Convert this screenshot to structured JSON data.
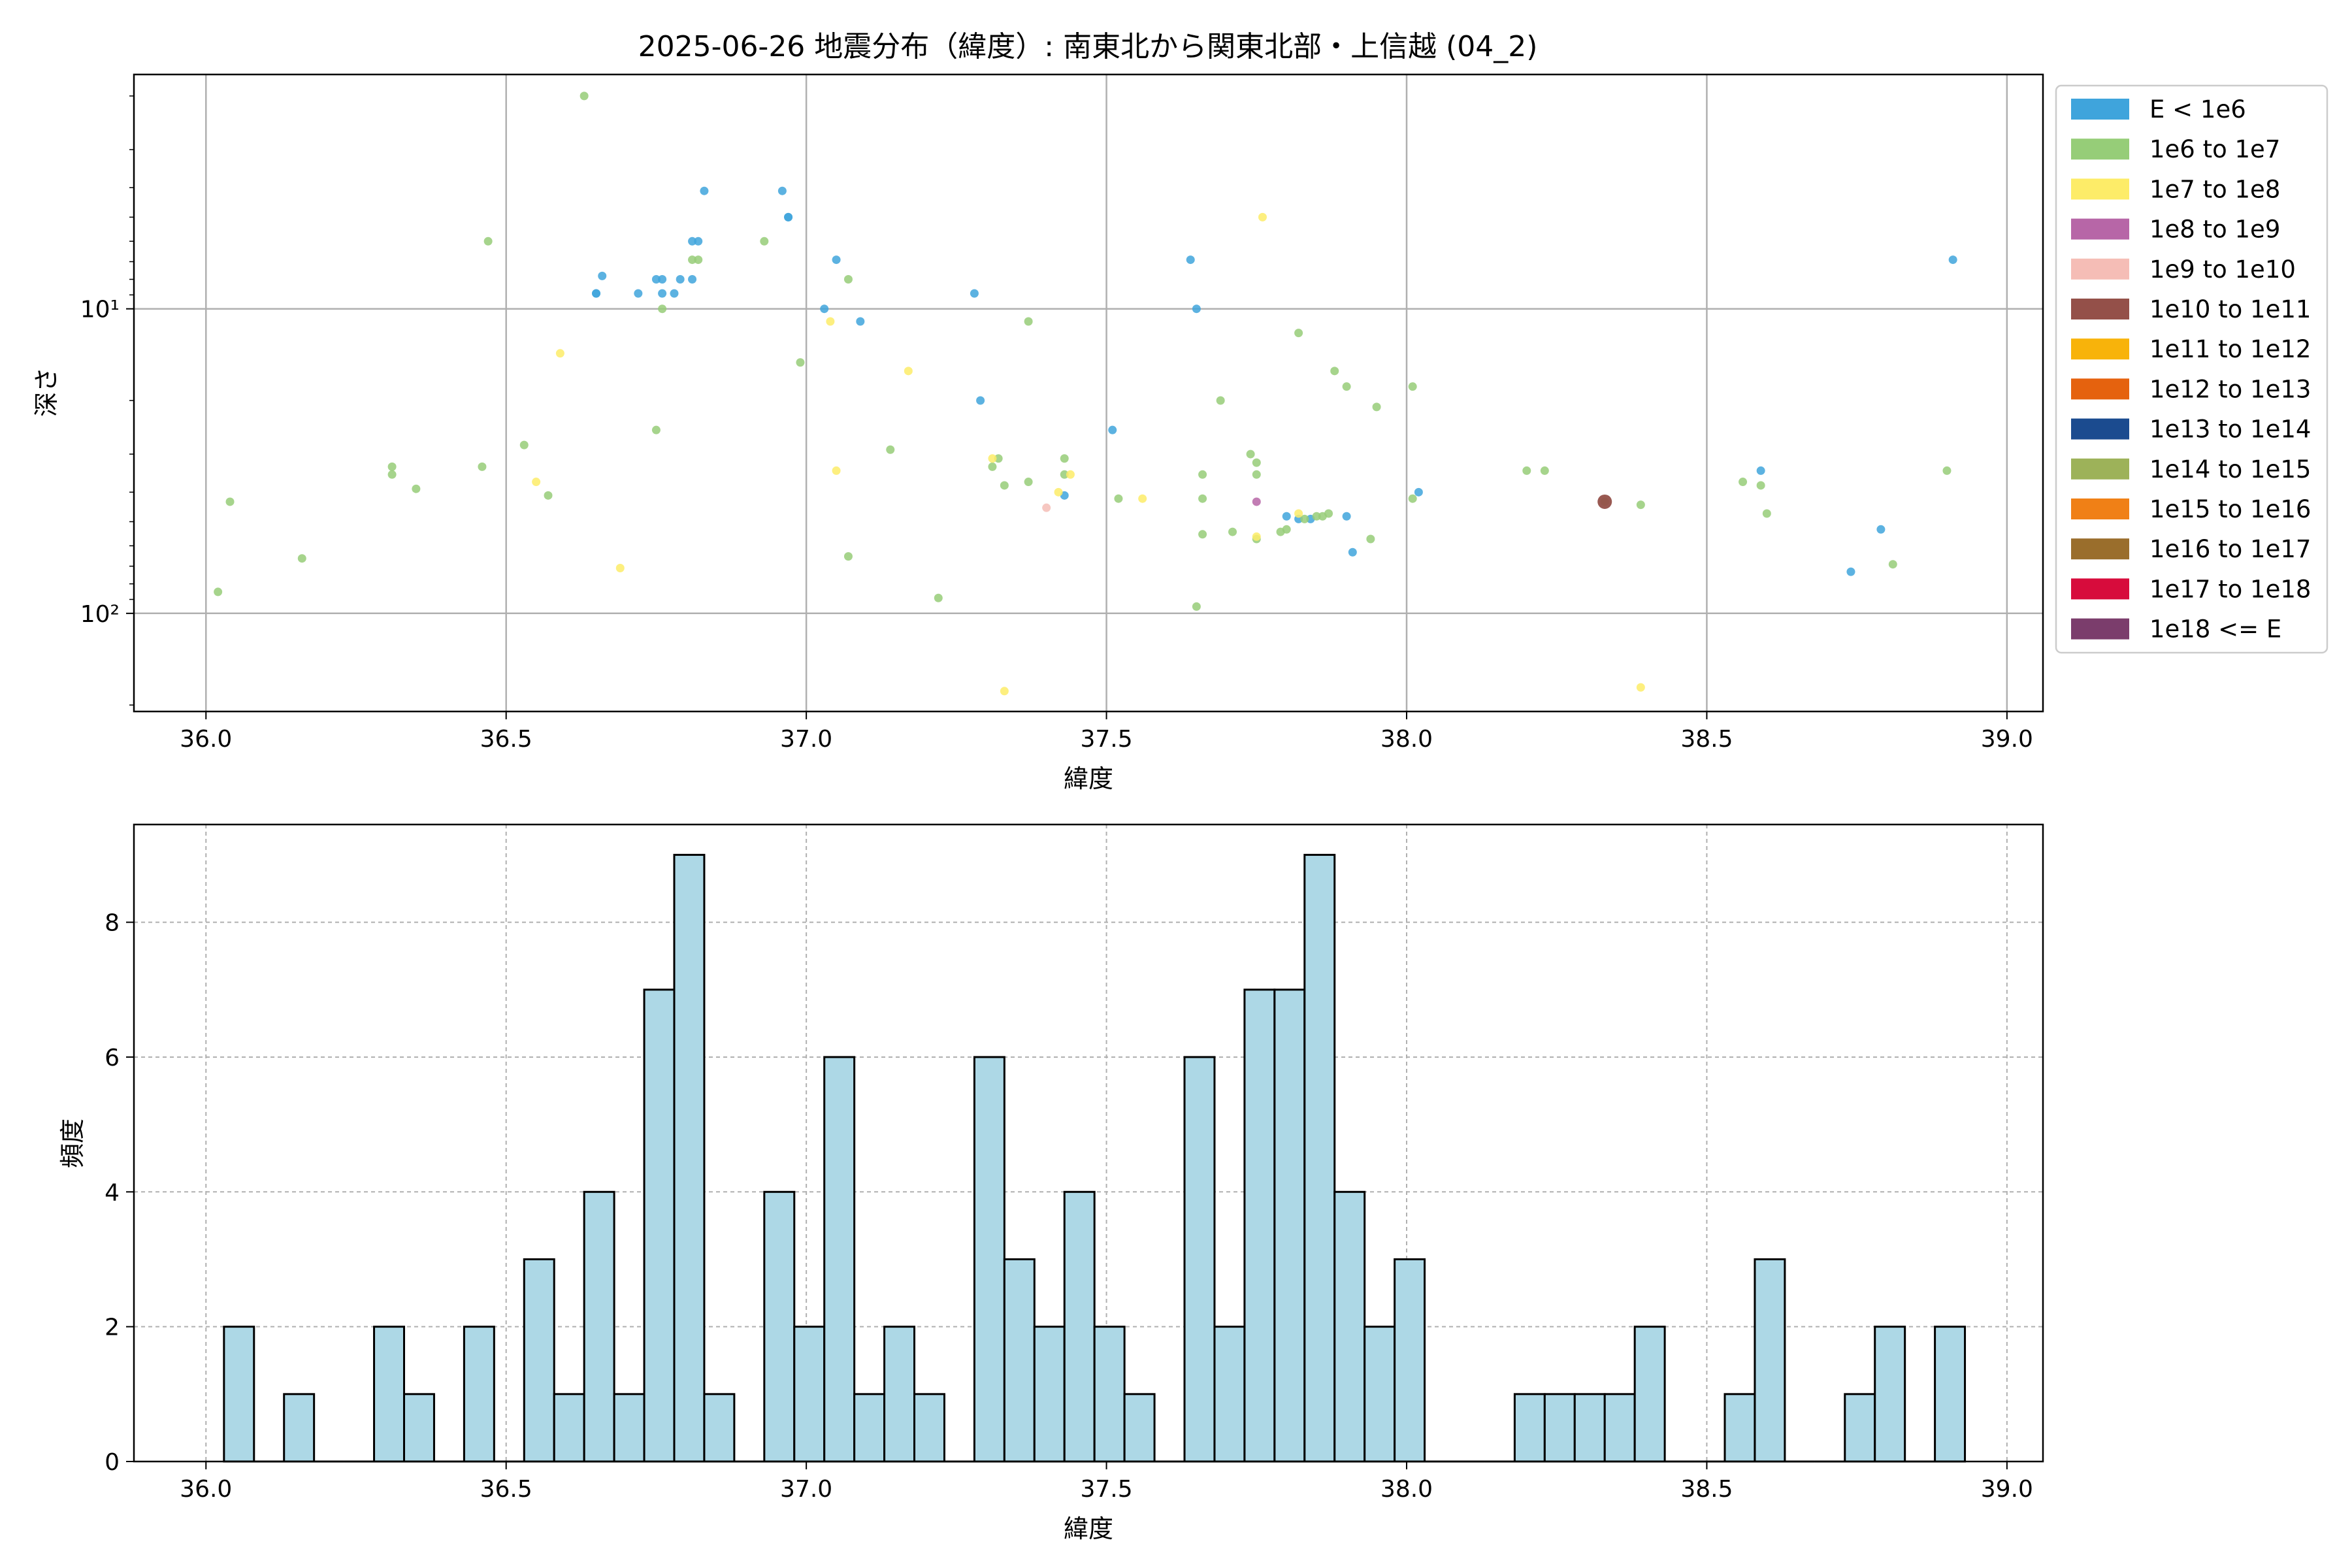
{
  "chart_data": [
    {
      "type": "scatter",
      "title": "2025-06-26 地震分布（緯度）: 南東北から関東北部・上信越 (04_2)",
      "xlabel": "緯度",
      "ylabel": "深さ",
      "xlim": [
        35.88,
        39.06
      ],
      "ylim": [
        210,
        1.7
      ],
      "yscale": "log",
      "y_inverted": true,
      "xticks": [
        "36.0",
        "36.5",
        "37.0",
        "37.5",
        "38.0",
        "38.5",
        "39.0"
      ],
      "yticks": [
        {
          "value": 10,
          "label": "10¹"
        },
        {
          "value": 100,
          "label": "10²"
        }
      ],
      "grid": true,
      "legend_position": "outside-right",
      "legend": [
        {
          "label": "E < 1e6",
          "color": "#3fa4dc"
        },
        {
          "label": "1e6 to 1e7",
          "color": "#96cd78"
        },
        {
          "label": "1e7 to 1e8",
          "color": "#fdec68"
        },
        {
          "label": "1e8 to 1e9",
          "color": "#b766a7"
        },
        {
          "label": "1e9 to 1e10",
          "color": "#f5bdb6"
        },
        {
          "label": "1e10 to 1e11",
          "color": "#945049"
        },
        {
          "label": "1e11 to 1e12",
          "color": "#f8b30a"
        },
        {
          "label": "1e12 to 1e13",
          "color": "#e5620e"
        },
        {
          "label": "1e13 to 1e14",
          "color": "#1b4b8f"
        },
        {
          "label": "1e14 to 1e15",
          "color": "#9db259"
        },
        {
          "label": "1e15 to 1e16",
          "color": "#f08016"
        },
        {
          "label": "1e16 to 1e17",
          "color": "#9a6e2c"
        },
        {
          "label": "1e17 to 1e18",
          "color": "#d70c3c"
        },
        {
          "label": "1e18 <= E",
          "color": "#7b3d6c"
        }
      ],
      "series": [
        {
          "class": 0,
          "points": [
            [
              36.65,
              8.9
            ],
            [
              36.65,
              8.9
            ],
            [
              36.66,
              7.8
            ],
            [
              36.72,
              8.9
            ],
            [
              36.75,
              8.0
            ],
            [
              36.76,
              8.0
            ],
            [
              36.76,
              8.9
            ],
            [
              36.78,
              8.9
            ],
            [
              36.79,
              8.0
            ],
            [
              36.81,
              8.0
            ],
            [
              36.81,
              6.0
            ],
            [
              36.82,
              6.0
            ],
            [
              36.83,
              4.1
            ],
            [
              36.96,
              4.1
            ],
            [
              36.97,
              5.0
            ],
            [
              36.97,
              5.0
            ],
            [
              37.03,
              10.0
            ],
            [
              37.05,
              6.9
            ],
            [
              37.09,
              11.0
            ],
            [
              37.28,
              8.9
            ],
            [
              37.29,
              20.0
            ],
            [
              37.43,
              41.0
            ],
            [
              37.51,
              25.0
            ],
            [
              37.64,
              6.9
            ],
            [
              37.65,
              10.0
            ],
            [
              37.8,
              48.0
            ],
            [
              37.82,
              49.0
            ],
            [
              37.84,
              49.0
            ],
            [
              37.9,
              48.0
            ],
            [
              37.91,
              63.0
            ],
            [
              38.02,
              40.0
            ],
            [
              38.59,
              34.0
            ],
            [
              38.74,
              73.0
            ],
            [
              38.79,
              53.0
            ],
            [
              38.91,
              6.9
            ]
          ]
        },
        {
          "class": 1,
          "points": [
            [
              36.02,
              85.0
            ],
            [
              36.04,
              43.0
            ],
            [
              36.16,
              66.0
            ],
            [
              36.31,
              33.0
            ],
            [
              36.31,
              35.0
            ],
            [
              36.35,
              39.0
            ],
            [
              36.46,
              33.0
            ],
            [
              36.47,
              6.0
            ],
            [
              36.53,
              28.0
            ],
            [
              36.57,
              41.0
            ],
            [
              36.63,
              2.0
            ],
            [
              36.75,
              25.0
            ],
            [
              36.76,
              10.0
            ],
            [
              36.81,
              6.9
            ],
            [
              36.82,
              6.9
            ],
            [
              36.93,
              6.0
            ],
            [
              36.99,
              15.0
            ],
            [
              37.07,
              8.0
            ],
            [
              37.07,
              65.0
            ],
            [
              37.14,
              29.0
            ],
            [
              37.22,
              89.0
            ],
            [
              37.31,
              33.0
            ],
            [
              37.32,
              31.0
            ],
            [
              37.33,
              38.0
            ],
            [
              37.37,
              11.0
            ],
            [
              37.37,
              37.0
            ],
            [
              37.43,
              31.0
            ],
            [
              37.43,
              35.0
            ],
            [
              37.52,
              42.0
            ],
            [
              37.65,
              95.0
            ],
            [
              37.66,
              35.0
            ],
            [
              37.66,
              42.0
            ],
            [
              37.66,
              55.0
            ],
            [
              37.69,
              20.0
            ],
            [
              37.71,
              54.0
            ],
            [
              37.74,
              30.0
            ],
            [
              37.75,
              32.0
            ],
            [
              37.75,
              35.0
            ],
            [
              37.75,
              57.0
            ],
            [
              37.79,
              54.0
            ],
            [
              37.8,
              53.0
            ],
            [
              37.82,
              12.0
            ],
            [
              37.83,
              49.0
            ],
            [
              37.85,
              48.0
            ],
            [
              37.86,
              48.0
            ],
            [
              37.87,
              47.0
            ],
            [
              37.88,
              16.0
            ],
            [
              37.9,
              18.0
            ],
            [
              37.94,
              57.0
            ],
            [
              37.95,
              21.0
            ],
            [
              38.01,
              18.0
            ],
            [
              38.01,
              42.0
            ],
            [
              38.2,
              34.0
            ],
            [
              38.23,
              34.0
            ],
            [
              38.33,
              43.0
            ],
            [
              38.39,
              44.0
            ],
            [
              38.56,
              37.0
            ],
            [
              38.59,
              38.0
            ],
            [
              38.6,
              47.0
            ],
            [
              38.81,
              69.0
            ],
            [
              38.9,
              34.0
            ]
          ]
        },
        {
          "class": 2,
          "points": [
            [
              36.55,
              37.0
            ],
            [
              36.59,
              14.0
            ],
            [
              36.69,
              71.0
            ],
            [
              37.04,
              11.0
            ],
            [
              37.05,
              34.0
            ],
            [
              37.17,
              16.0
            ],
            [
              37.31,
              31.0
            ],
            [
              37.33,
              180.0
            ],
            [
              37.42,
              40.0
            ],
            [
              37.44,
              35.0
            ],
            [
              37.56,
              42.0
            ],
            [
              37.75,
              56.0
            ],
            [
              37.76,
              5.0
            ],
            [
              37.82,
              47.0
            ],
            [
              38.39,
              175.0
            ]
          ]
        },
        {
          "class": 3,
          "points": [
            [
              37.75,
              43.0
            ]
          ]
        },
        {
          "class": 4,
          "points": [
            [
              37.4,
              45.0
            ]
          ]
        },
        {
          "class": 5,
          "points": [
            [
              38.33,
              43.0
            ]
          ]
        }
      ]
    },
    {
      "type": "bar",
      "subtype": "histogram",
      "xlabel": "緯度",
      "ylabel": "頻度",
      "xlim": [
        35.88,
        39.06
      ],
      "ylim": [
        0,
        9.45
      ],
      "xticks": [
        "36.0",
        "36.5",
        "37.0",
        "37.5",
        "38.0",
        "38.5",
        "39.0"
      ],
      "yticks": [
        "0",
        "2",
        "4",
        "6",
        "8"
      ],
      "grid": true,
      "bar_color": "#add8e6",
      "bin_start": 36.03,
      "bin_width": 0.05,
      "values": [
        2,
        0,
        1,
        0,
        0,
        2,
        1,
        0,
        2,
        0,
        3,
        1,
        4,
        1,
        7,
        9,
        1,
        0,
        4,
        2,
        6,
        1,
        2,
        1,
        0,
        6,
        3,
        2,
        4,
        2,
        1,
        0,
        6,
        2,
        7,
        7,
        9,
        4,
        2,
        3,
        0,
        0,
        0,
        1,
        1,
        1,
        1,
        2,
        0,
        0,
        1,
        3,
        0,
        0,
        1,
        2,
        0,
        2
      ]
    }
  ]
}
